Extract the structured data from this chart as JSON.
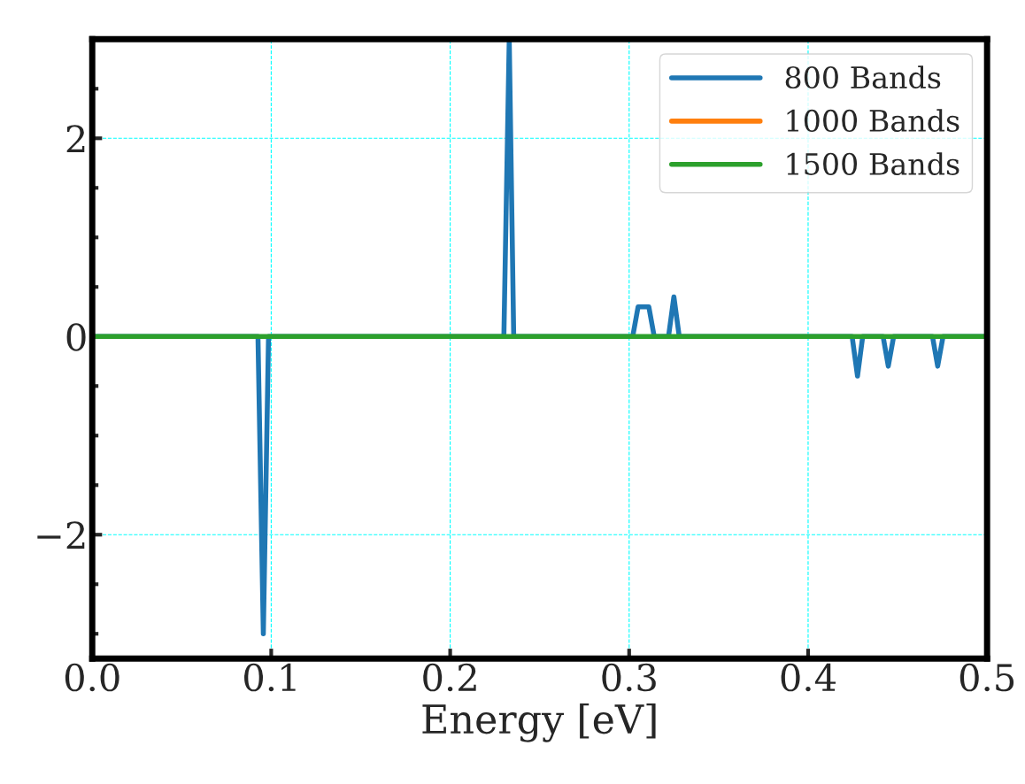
{
  "chart_data": {
    "type": "line",
    "xlabel": "Energy [eV]",
    "xlim": [
      0.0,
      0.5
    ],
    "xticks": [
      {
        "value": 0.0,
        "label": "0.0"
      },
      0.1,
      0.2,
      0.3,
      0.4,
      0.5
    ],
    "ylim": [
      -3.25,
      3.0
    ],
    "yticks": [
      {
        "value": -2,
        "label": "−2"
      },
      0,
      2
    ],
    "grid": true,
    "legend": "top right",
    "line_style": "solid",
    "marker": "none",
    "series": [
      {
        "name": "800 Bands",
        "color": "#1f77b4",
        "x": [
          0.0,
          0.0926,
          0.0956,
          0.0985,
          0.23,
          0.233,
          0.2355,
          0.302,
          0.305,
          0.311,
          0.314,
          0.322,
          0.325,
          0.328,
          0.4246,
          0.4276,
          0.4305,
          0.4419,
          0.4448,
          0.4478,
          0.4695,
          0.4724,
          0.4754,
          0.5
        ],
        "values": [
          0,
          0,
          -3.0,
          0,
          0,
          3.0,
          0,
          0,
          0.3,
          0.3,
          0,
          0,
          0.4,
          0,
          0,
          -0.4,
          0,
          0,
          -0.3,
          0,
          0,
          -0.3,
          0,
          0
        ]
      },
      {
        "name": "1000 Bands",
        "color": "#ff7f0e"
      },
      {
        "name": "1500 Bands",
        "color": "#2ca02c",
        "x": [
          0.0,
          0.5
        ],
        "values": [
          0,
          0
        ]
      }
    ]
  }
}
